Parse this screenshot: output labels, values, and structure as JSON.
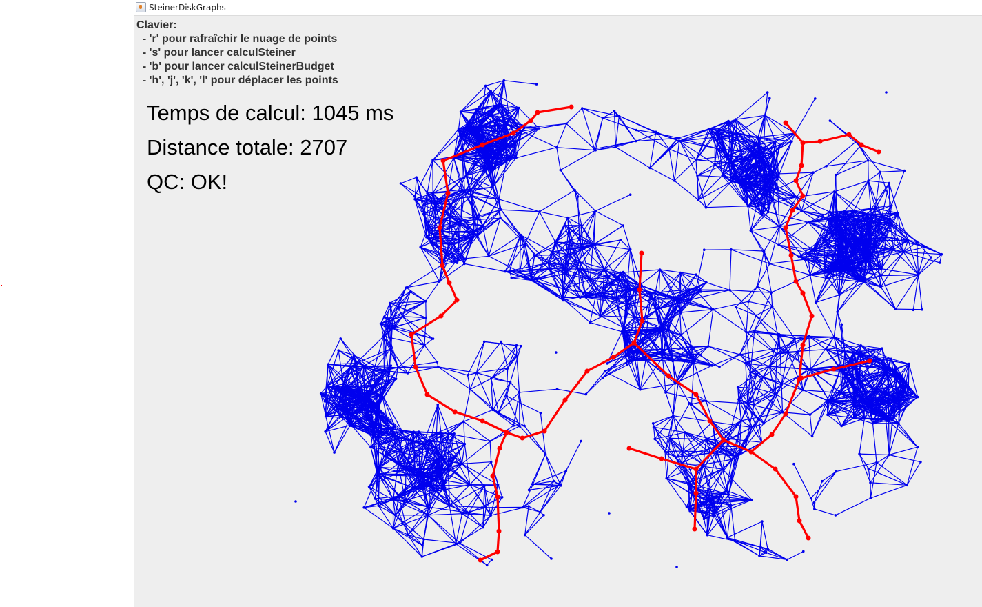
{
  "window": {
    "title": "SteinerDiskGraphs",
    "icon": "java-coffee-icon"
  },
  "help": {
    "heading": "Clavier:",
    "lines": [
      "  - 'r' pour rafraîchir le nuage de points",
      "  - 's' pour lancer calculSteiner",
      "  - 'b' pour lancer calculSteinerBudget",
      "  - 'h', 'j', 'k', 'l' pour déplacer les points"
    ]
  },
  "stats": {
    "time_label": "Temps de calcul: 1045 ms",
    "distance_label": "Distance totale: 2707",
    "qc_label": "QC: OK!"
  },
  "colors": {
    "edge": "#0000ee",
    "tree": "#ff0000",
    "background": "#eeeeee"
  }
}
